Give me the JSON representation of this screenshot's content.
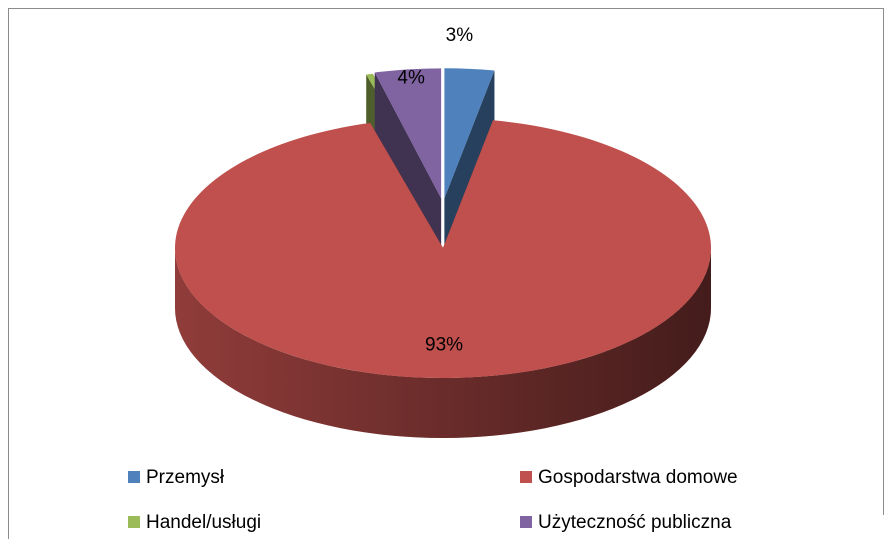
{
  "chart_data": {
    "type": "pie",
    "categories": [
      "Przemysł",
      "Gospodarstwa domowe",
      "Handel/usługi",
      "Użyteczność publiczna"
    ],
    "values": [
      3,
      93,
      0.4,
      4
    ],
    "value_labels": [
      "3%",
      "93%",
      null,
      "4%"
    ],
    "colors": [
      "#4f81bd",
      "#c0504d",
      "#9bbb59",
      "#8064a2"
    ],
    "legend": "bottom"
  }
}
